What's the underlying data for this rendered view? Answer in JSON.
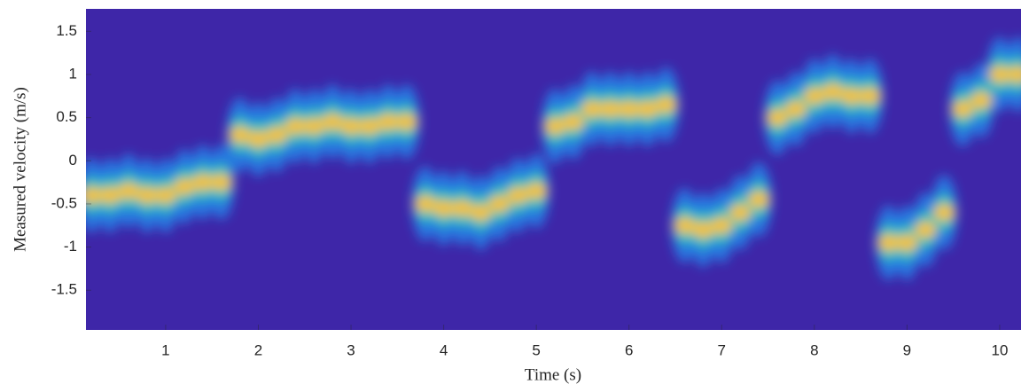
{
  "chart_data": {
    "type": "spectrogram",
    "x_label": "Time (s)",
    "y_label": "Measured velocity (m/s)",
    "x": [
      0.2,
      0.4,
      0.6,
      0.8,
      1.0,
      1.2,
      1.4,
      1.6,
      1.8,
      2.0,
      2.2,
      2.4,
      2.6,
      2.8,
      3.0,
      3.2,
      3.4,
      3.6,
      3.8,
      4.0,
      4.2,
      4.4,
      4.6,
      4.8,
      5.0,
      5.2,
      5.4,
      5.6,
      5.8,
      6.0,
      6.2,
      6.4,
      6.6,
      6.8,
      7.0,
      7.2,
      7.4,
      7.6,
      7.8,
      8.0,
      8.2,
      8.4,
      8.6,
      8.8,
      9.0,
      9.2,
      9.4,
      9.6,
      9.8,
      10.0,
      10.2
    ],
    "values": [
      -0.4,
      -0.4,
      -0.35,
      -0.4,
      -0.4,
      -0.3,
      -0.25,
      -0.25,
      0.3,
      0.25,
      0.3,
      0.4,
      0.4,
      0.45,
      0.4,
      0.4,
      0.45,
      0.45,
      -0.5,
      -0.55,
      -0.55,
      -0.6,
      -0.5,
      -0.4,
      -0.35,
      0.4,
      0.45,
      0.6,
      0.6,
      0.6,
      0.6,
      0.65,
      -0.75,
      -0.8,
      -0.75,
      -0.6,
      -0.45,
      0.5,
      0.6,
      0.75,
      0.8,
      0.75,
      0.75,
      -0.95,
      -0.95,
      -0.8,
      -0.6,
      0.6,
      0.7,
      1.0,
      1.0
    ],
    "xlim": [
      0.14,
      10.23
    ],
    "ylim": [
      -1.96,
      1.76
    ],
    "xticks": [
      1,
      2,
      3,
      4,
      5,
      6,
      7,
      8,
      9,
      10
    ],
    "yticks": [
      -1.5,
      -1,
      -0.5,
      0,
      0.5,
      1,
      1.5
    ],
    "background_color": "#3e26a8",
    "colors": [
      "#1f8ef0",
      "#2fc7b6",
      "#f6c22c"
    ]
  }
}
